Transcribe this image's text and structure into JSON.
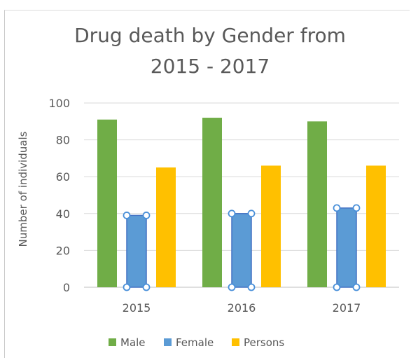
{
  "chart_data": {
    "type": "bar",
    "title_lines": [
      "Drug death by Gender from",
      "2015 - 2017"
    ],
    "xlabel": "",
    "ylabel": "Number of individuals",
    "categories": [
      "2015",
      "2016",
      "2017"
    ],
    "ylim": [
      0,
      100
    ],
    "yticks": [
      0,
      20,
      40,
      60,
      80,
      100
    ],
    "grid": true,
    "legend_position": "bottom",
    "series": [
      {
        "name": "Male",
        "values": [
          91,
          92,
          90
        ],
        "color": "#70ad47"
      },
      {
        "name": "Female",
        "values": [
          39,
          40,
          43
        ],
        "color": "#5b9bd5"
      },
      {
        "name": "Persons",
        "values": [
          65,
          66,
          66
        ],
        "color": "#ffc000"
      }
    ],
    "selected_series": "Female"
  }
}
